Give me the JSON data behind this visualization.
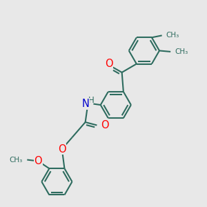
{
  "bg_color": "#e8e8e8",
  "bond_color": "#2d6b5e",
  "bond_width": 1.5,
  "atom_colors": {
    "O": "#ff0000",
    "N": "#0000cc",
    "C": "#2d6b5e",
    "H": "#2d6b5e"
  },
  "font_size": 8.5,
  "fig_size": [
    3.0,
    3.0
  ],
  "dpi": 100,
  "xlim": [
    0,
    10
  ],
  "ylim": [
    0,
    10
  ]
}
